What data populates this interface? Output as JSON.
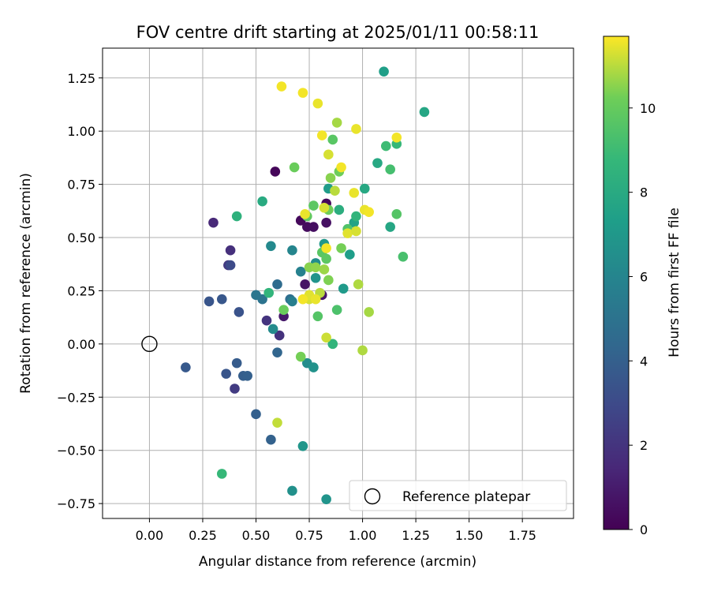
{
  "chart_data": {
    "type": "scatter",
    "title": "FOV centre drift starting at 2025/01/11 00:58:11",
    "xlabel": "Angular distance from reference (arcmin)",
    "ylabel": "Rotation from reference (arcmin)",
    "xlim": [
      -0.22,
      1.99
    ],
    "ylim": [
      -0.82,
      1.39
    ],
    "xticks": [
      "0.00",
      "0.25",
      "0.50",
      "0.75",
      "1.00",
      "1.25",
      "1.50",
      "1.75"
    ],
    "yticks": [
      "−0.75",
      "−0.50",
      "−0.25",
      "0.00",
      "0.25",
      "0.50",
      "0.75",
      "1.00",
      "1.25"
    ],
    "grid": true,
    "colormap": "viridis",
    "colorbar": {
      "label": "Hours from first FF file",
      "range": [
        0,
        11.7
      ],
      "ticks": [
        "0",
        "2",
        "4",
        "6",
        "8",
        "10"
      ]
    },
    "legend": {
      "placement": "lower-right",
      "entries": [
        "Reference platepar"
      ]
    },
    "reference_point": {
      "x": 0.0,
      "y": 0.0
    },
    "points": [
      {
        "x": 0.59,
        "y": 0.81,
        "c": 0.2
      },
      {
        "x": 0.71,
        "y": 0.58,
        "c": 0.3
      },
      {
        "x": 0.74,
        "y": 0.55,
        "c": 0.4
      },
      {
        "x": 0.77,
        "y": 0.55,
        "c": 0.5
      },
      {
        "x": 0.83,
        "y": 0.57,
        "c": 0.6
      },
      {
        "x": 0.73,
        "y": 0.28,
        "c": 0.7
      },
      {
        "x": 0.81,
        "y": 0.23,
        "c": 0.8
      },
      {
        "x": 0.63,
        "y": 0.13,
        "c": 0.9
      },
      {
        "x": 0.83,
        "y": 0.66,
        "c": 0.3
      },
      {
        "x": 0.3,
        "y": 0.57,
        "c": 1.5
      },
      {
        "x": 0.38,
        "y": 0.44,
        "c": 1.8
      },
      {
        "x": 0.37,
        "y": 0.37,
        "c": 2.2
      },
      {
        "x": 0.55,
        "y": 0.11,
        "c": 2.0
      },
      {
        "x": 0.61,
        "y": 0.04,
        "c": 1.9
      },
      {
        "x": 0.4,
        "y": -0.21,
        "c": 2.3
      },
      {
        "x": 0.38,
        "y": 0.37,
        "c": 3.0
      },
      {
        "x": 0.28,
        "y": 0.2,
        "c": 3.5
      },
      {
        "x": 0.34,
        "y": 0.21,
        "c": 3.6
      },
      {
        "x": 0.42,
        "y": 0.15,
        "c": 3.4
      },
      {
        "x": 0.17,
        "y": -0.11,
        "c": 3.7
      },
      {
        "x": 0.36,
        "y": -0.14,
        "c": 3.5
      },
      {
        "x": 0.41,
        "y": -0.09,
        "c": 3.8
      },
      {
        "x": 0.44,
        "y": -0.15,
        "c": 3.9
      },
      {
        "x": 0.46,
        "y": -0.15,
        "c": 4.0
      },
      {
        "x": 0.5,
        "y": -0.33,
        "c": 4.0
      },
      {
        "x": 0.57,
        "y": -0.45,
        "c": 4.1
      },
      {
        "x": 0.6,
        "y": -0.04,
        "c": 4.3
      },
      {
        "x": 0.6,
        "y": 0.28,
        "c": 4.6
      },
      {
        "x": 0.66,
        "y": 0.21,
        "c": 4.8
      },
      {
        "x": 0.53,
        "y": 0.21,
        "c": 5.0
      },
      {
        "x": 0.5,
        "y": 0.23,
        "c": 5.2
      },
      {
        "x": 0.67,
        "y": 0.2,
        "c": 5.6
      },
      {
        "x": 0.71,
        "y": 0.34,
        "c": 5.8
      },
      {
        "x": 0.67,
        "y": 0.44,
        "c": 6.0
      },
      {
        "x": 0.57,
        "y": 0.46,
        "c": 6.2
      },
      {
        "x": 0.58,
        "y": 0.07,
        "c": 6.3
      },
      {
        "x": 0.74,
        "y": -0.09,
        "c": 6.4
      },
      {
        "x": 0.77,
        "y": -0.11,
        "c": 6.7
      },
      {
        "x": 0.72,
        "y": -0.48,
        "c": 6.9
      },
      {
        "x": 0.67,
        "y": -0.69,
        "c": 6.6
      },
      {
        "x": 0.83,
        "y": -0.73,
        "c": 6.8
      },
      {
        "x": 0.78,
        "y": 0.38,
        "c": 6.4
      },
      {
        "x": 0.78,
        "y": 0.31,
        "c": 6.8
      },
      {
        "x": 0.82,
        "y": 0.47,
        "c": 7.0
      },
      {
        "x": 0.84,
        "y": 0.73,
        "c": 7.2
      },
      {
        "x": 0.91,
        "y": 0.26,
        "c": 7.1
      },
      {
        "x": 0.94,
        "y": 0.42,
        "c": 7.3
      },
      {
        "x": 0.96,
        "y": 0.57,
        "c": 7.6
      },
      {
        "x": 1.1,
        "y": 1.28,
        "c": 7.4
      },
      {
        "x": 1.29,
        "y": 1.09,
        "c": 7.8
      },
      {
        "x": 1.07,
        "y": 0.85,
        "c": 7.9
      },
      {
        "x": 1.13,
        "y": 0.55,
        "c": 7.8
      },
      {
        "x": 1.01,
        "y": 0.73,
        "c": 7.9
      },
      {
        "x": 0.53,
        "y": 0.67,
        "c": 8.0
      },
      {
        "x": 0.41,
        "y": 0.6,
        "c": 8.4
      },
      {
        "x": 0.89,
        "y": 0.63,
        "c": 8.2
      },
      {
        "x": 0.86,
        "y": 0.0,
        "c": 8.6
      },
      {
        "x": 0.34,
        "y": -0.61,
        "c": 8.8
      },
      {
        "x": 0.56,
        "y": 0.24,
        "c": 8.6
      },
      {
        "x": 0.97,
        "y": 0.6,
        "c": 8.6
      },
      {
        "x": 1.16,
        "y": 0.94,
        "c": 8.8
      },
      {
        "x": 1.11,
        "y": 0.93,
        "c": 9.0
      },
      {
        "x": 1.13,
        "y": 0.82,
        "c": 9.2
      },
      {
        "x": 1.19,
        "y": 0.41,
        "c": 9.3
      },
      {
        "x": 1.16,
        "y": 0.61,
        "c": 9.6
      },
      {
        "x": 0.93,
        "y": 0.54,
        "c": 9.5
      },
      {
        "x": 0.88,
        "y": 0.16,
        "c": 9.4
      },
      {
        "x": 0.79,
        "y": 0.13,
        "c": 9.6
      },
      {
        "x": 0.81,
        "y": 0.43,
        "c": 9.7
      },
      {
        "x": 0.83,
        "y": 0.4,
        "c": 9.8
      },
      {
        "x": 0.86,
        "y": 0.96,
        "c": 9.7
      },
      {
        "x": 0.77,
        "y": 0.65,
        "c": 9.8
      },
      {
        "x": 0.74,
        "y": 0.6,
        "c": 9.9
      },
      {
        "x": 0.63,
        "y": 0.16,
        "c": 10.1
      },
      {
        "x": 0.68,
        "y": 0.83,
        "c": 10.1
      },
      {
        "x": 0.84,
        "y": 0.63,
        "c": 10.2
      },
      {
        "x": 0.89,
        "y": 0.81,
        "c": 10.2
      },
      {
        "x": 0.9,
        "y": 0.45,
        "c": 10.3
      },
      {
        "x": 0.71,
        "y": -0.06,
        "c": 10.3
      },
      {
        "x": 0.84,
        "y": 0.3,
        "c": 10.4
      },
      {
        "x": 0.75,
        "y": 0.36,
        "c": 10.5
      },
      {
        "x": 0.78,
        "y": 0.36,
        "c": 10.6
      },
      {
        "x": 0.82,
        "y": 0.35,
        "c": 10.7
      },
      {
        "x": 0.85,
        "y": 0.78,
        "c": 10.5
      },
      {
        "x": 0.88,
        "y": 1.04,
        "c": 10.8
      },
      {
        "x": 1.0,
        "y": -0.03,
        "c": 10.9
      },
      {
        "x": 1.03,
        "y": 0.15,
        "c": 10.8
      },
      {
        "x": 0.98,
        "y": 0.28,
        "c": 10.9
      },
      {
        "x": 0.87,
        "y": 0.72,
        "c": 11.0
      },
      {
        "x": 0.6,
        "y": -0.37,
        "c": 11.1
      },
      {
        "x": 0.8,
        "y": 0.24,
        "c": 11.0
      },
      {
        "x": 0.83,
        "y": 0.03,
        "c": 11.2
      },
      {
        "x": 0.84,
        "y": 0.89,
        "c": 11.3
      },
      {
        "x": 0.75,
        "y": 0.21,
        "c": 11.3
      },
      {
        "x": 0.75,
        "y": 0.23,
        "c": 11.4
      },
      {
        "x": 0.78,
        "y": 0.21,
        "c": 11.5
      },
      {
        "x": 0.73,
        "y": 0.61,
        "c": 11.5
      },
      {
        "x": 0.72,
        "y": 1.18,
        "c": 11.6
      },
      {
        "x": 0.62,
        "y": 1.21,
        "c": 11.6
      },
      {
        "x": 0.79,
        "y": 1.13,
        "c": 11.5
      },
      {
        "x": 0.81,
        "y": 0.98,
        "c": 11.6
      },
      {
        "x": 0.97,
        "y": 1.01,
        "c": 11.5
      },
      {
        "x": 1.16,
        "y": 0.97,
        "c": 11.6
      },
      {
        "x": 0.96,
        "y": 0.71,
        "c": 11.5
      },
      {
        "x": 0.9,
        "y": 0.83,
        "c": 11.6
      },
      {
        "x": 1.01,
        "y": 0.63,
        "c": 11.5
      },
      {
        "x": 1.03,
        "y": 0.62,
        "c": 11.6
      },
      {
        "x": 0.83,
        "y": 0.45,
        "c": 11.6
      },
      {
        "x": 0.93,
        "y": 0.52,
        "c": 11.4
      },
      {
        "x": 0.97,
        "y": 0.53,
        "c": 11.3
      },
      {
        "x": 0.72,
        "y": 0.21,
        "c": 11.6
      },
      {
        "x": 0.82,
        "y": 0.64,
        "c": 11.3
      }
    ]
  }
}
